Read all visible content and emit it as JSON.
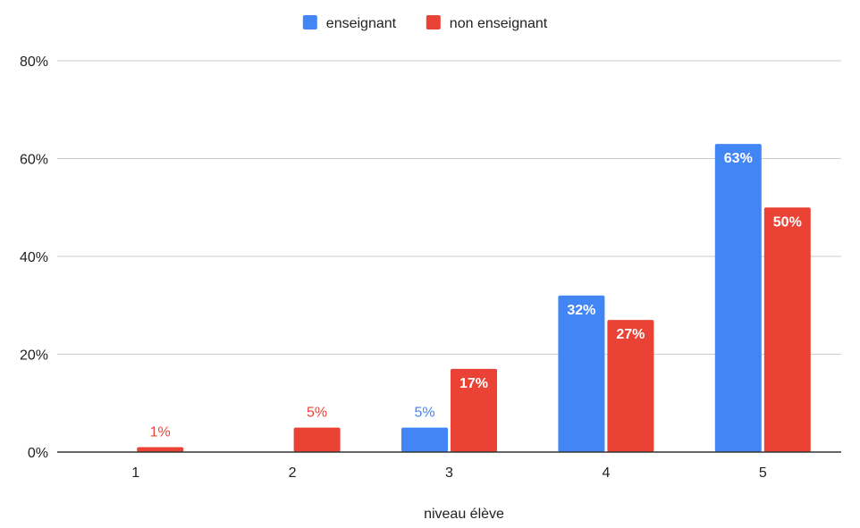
{
  "chart_data": {
    "type": "bar",
    "title": "",
    "xlabel": "niveau élève",
    "ylabel": "",
    "categories": [
      "1",
      "2",
      "3",
      "4",
      "5"
    ],
    "series": [
      {
        "name": "enseignant",
        "color": "#4285f4",
        "values": [
          null,
          null,
          5,
          32,
          63
        ],
        "labels": [
          "",
          "",
          "5%",
          "32%",
          "63%"
        ]
      },
      {
        "name": "non enseignant",
        "color": "#ea4335",
        "values": [
          1,
          5,
          17,
          27,
          50
        ],
        "labels": [
          "1%",
          "5%",
          "17%",
          "27%",
          "50%"
        ]
      }
    ],
    "ylim": [
      0,
      80
    ],
    "yticks": [
      {
        "value": 0,
        "label": "0%"
      },
      {
        "value": 20,
        "label": "20%"
      },
      {
        "value": 40,
        "label": "40%"
      },
      {
        "value": 60,
        "label": "60%"
      },
      {
        "value": 80,
        "label": "80%"
      }
    ],
    "grid": true,
    "legend": "top-center",
    "colors": {
      "grid": "#cccccc",
      "axis": "#333333",
      "tick_text": "#222222"
    }
  }
}
